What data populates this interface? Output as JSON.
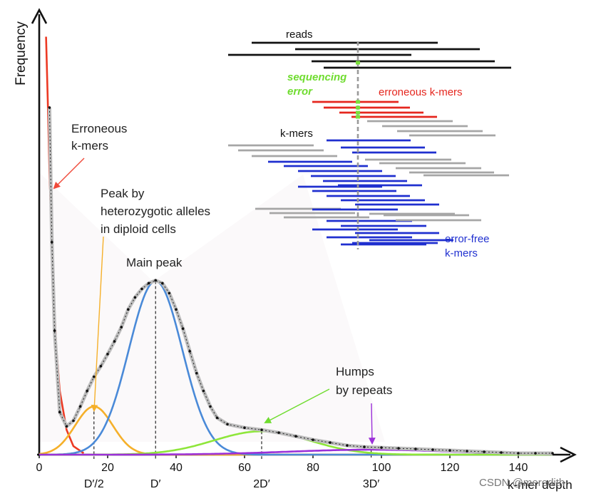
{
  "chart_data": {
    "type": "line",
    "title": "",
    "xlabel": "k-mer depth",
    "ylabel": "Frequency",
    "xlim": [
      0,
      150
    ],
    "x_ticks": [
      {
        "value": 0,
        "label": "0"
      },
      {
        "value": 20,
        "label": "20"
      },
      {
        "value": 40,
        "label": "40"
      },
      {
        "value": 60,
        "label": "60"
      },
      {
        "value": 80,
        "label": "80"
      },
      {
        "value": 100,
        "label": "100"
      },
      {
        "value": 120,
        "label": "120"
      },
      {
        "value": 140,
        "label": "140"
      }
    ],
    "sub_ticks": [
      {
        "value": 16,
        "label": "D′/2"
      },
      {
        "value": 34,
        "label": "D′"
      },
      {
        "value": 65,
        "label": "2D′"
      },
      {
        "value": 97,
        "label": "3D′"
      }
    ],
    "series": [
      {
        "name": "Erroneous k-mers",
        "color": "#ec3a24",
        "kind": "decay",
        "values": [
          {
            "x": 2,
            "y": 590
          },
          {
            "x": 2.5,
            "y": 500
          },
          {
            "x": 3,
            "y": 400
          },
          {
            "x": 4,
            "y": 250
          },
          {
            "x": 5,
            "y": 150
          },
          {
            "x": 6,
            "y": 90
          },
          {
            "x": 8,
            "y": 35
          },
          {
            "x": 10,
            "y": 12
          },
          {
            "x": 13,
            "y": 2
          }
        ]
      },
      {
        "name": "Peak by heterozygotic alleles",
        "color": "#f5b02a",
        "kind": "gaussian",
        "center": 16,
        "height": 68,
        "sigma": 5.5
      },
      {
        "name": "Main peak",
        "color": "#4a8ad8",
        "kind": "gaussian",
        "center": 34,
        "height": 245,
        "sigma": 7.8
      },
      {
        "name": "2D′ hump",
        "color": "#8ee63a",
        "kind": "gaussian",
        "center": 65,
        "height": 33,
        "sigma": 14
      },
      {
        "name": "3D′ hump",
        "color": "#9b30d9",
        "kind": "gaussian",
        "center": 97,
        "height": 7,
        "sigma": 24
      }
    ],
    "observed_points": [
      {
        "x": 3,
        "y": 490
      },
      {
        "x": 3.7,
        "y": 300
      },
      {
        "x": 4.5,
        "y": 175
      },
      {
        "x": 6,
        "y": 60
      },
      {
        "x": 8,
        "y": 40
      },
      {
        "x": 10,
        "y": 48
      },
      {
        "x": 12,
        "y": 68
      },
      {
        "x": 14,
        "y": 90
      },
      {
        "x": 16,
        "y": 110
      },
      {
        "x": 18,
        "y": 125
      },
      {
        "x": 20,
        "y": 142
      },
      {
        "x": 22,
        "y": 160
      },
      {
        "x": 24,
        "y": 180
      },
      {
        "x": 26,
        "y": 205
      },
      {
        "x": 28,
        "y": 222
      },
      {
        "x": 30,
        "y": 234
      },
      {
        "x": 32,
        "y": 242
      },
      {
        "x": 34,
        "y": 246
      },
      {
        "x": 36,
        "y": 242
      },
      {
        "x": 38,
        "y": 228
      },
      {
        "x": 40,
        "y": 205
      },
      {
        "x": 42,
        "y": 178
      },
      {
        "x": 44,
        "y": 146
      },
      {
        "x": 46,
        "y": 115
      },
      {
        "x": 48,
        "y": 90
      },
      {
        "x": 50,
        "y": 68
      },
      {
        "x": 52,
        "y": 52
      },
      {
        "x": 55,
        "y": 43
      },
      {
        "x": 60,
        "y": 38
      },
      {
        "x": 65,
        "y": 35
      },
      {
        "x": 70,
        "y": 31
      },
      {
        "x": 75,
        "y": 26
      },
      {
        "x": 80,
        "y": 21
      },
      {
        "x": 85,
        "y": 17
      },
      {
        "x": 90,
        "y": 13
      },
      {
        "x": 95,
        "y": 11
      },
      {
        "x": 100,
        "y": 10
      },
      {
        "x": 105,
        "y": 9
      },
      {
        "x": 110,
        "y": 8
      },
      {
        "x": 115,
        "y": 7
      },
      {
        "x": 120,
        "y": 6
      },
      {
        "x": 125,
        "y": 5
      },
      {
        "x": 130,
        "y": 4
      },
      {
        "x": 135,
        "y": 3
      },
      {
        "x": 140,
        "y": 2
      },
      {
        "x": 145,
        "y": 2
      },
      {
        "x": 150,
        "y": 2
      }
    ]
  },
  "annotations": {
    "erroneous": [
      "Erroneous",
      "k-mers"
    ],
    "heterozygous": [
      "Peak by",
      "heterozygotic alleles",
      "in diploid cells"
    ],
    "main_peak": "Main peak",
    "humps": [
      "Humps",
      "by repeats"
    ]
  },
  "inset": {
    "reads_label": "reads",
    "seq_error_label": [
      "sequencing",
      "error"
    ],
    "erroneous_label": "erroneous k-mers",
    "kmers_label": "k-mers",
    "error_free_label": [
      "error-free",
      "k-mers"
    ],
    "colors": {
      "reads": "#111111",
      "error": "#e5261e",
      "kmer": "#a6a6a6",
      "good": "#1f2fcf",
      "highlight": "#79e03a",
      "dash": "#9a9a9a"
    }
  },
  "watermark": "CSDN @meredith"
}
